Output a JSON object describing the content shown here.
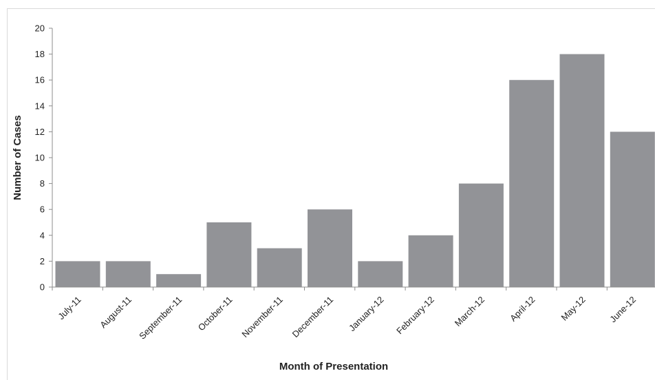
{
  "chart_data": {
    "type": "bar",
    "title": "",
    "xlabel": "Month of Presentation",
    "ylabel": "Number of Cases",
    "categories": [
      "July-11",
      "August-11",
      "September-11",
      "October-11",
      "November-11",
      "December-11",
      "January-12",
      "February-12",
      "March-12",
      "April-12",
      "May-12",
      "June-12"
    ],
    "values": [
      2,
      2,
      1,
      5,
      3,
      6,
      2,
      4,
      8,
      16,
      18,
      12
    ],
    "ylim": [
      0,
      20
    ],
    "yticks": [
      0,
      2,
      4,
      6,
      8,
      10,
      12,
      14,
      16,
      18,
      20
    ],
    "grid": false,
    "legend": "none",
    "bar_color": "#929397",
    "axis_color": "#8c8c8c"
  }
}
